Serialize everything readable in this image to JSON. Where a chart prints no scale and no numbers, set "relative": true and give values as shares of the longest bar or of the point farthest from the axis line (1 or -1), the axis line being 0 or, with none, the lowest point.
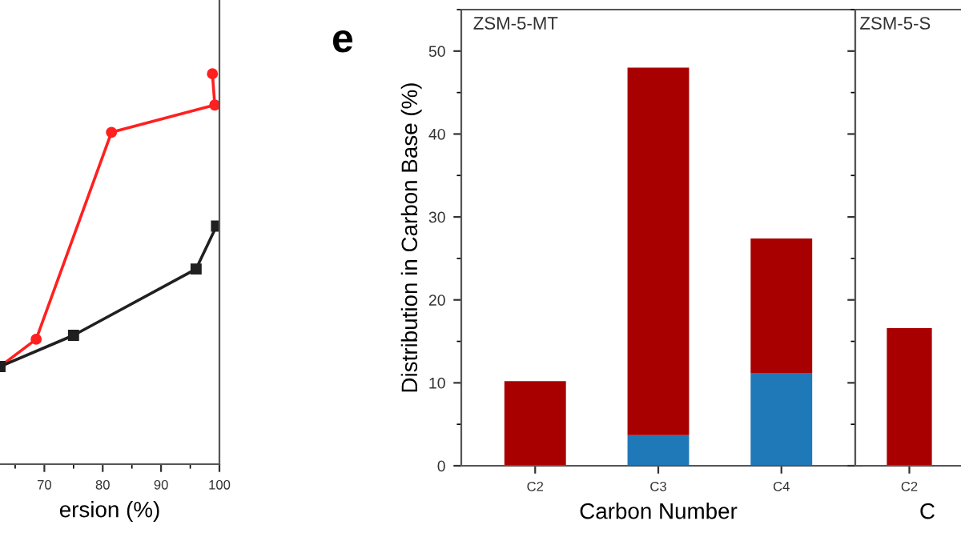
{
  "chart_data": [
    {
      "type": "line",
      "relative": true,
      "xlabel": "ersion (%)",
      "xlim": [
        62.4,
        100
      ],
      "xticks": [
        70,
        80,
        90,
        100
      ],
      "tick_labels": "x",
      "grid": false,
      "line_style": "solid",
      "series": [
        {
          "color": "#ff2020",
          "marker": "circle",
          "x": [
            62.4,
            68.6,
            81.5,
            99.2,
            98.8
          ],
          "values": [
            0.25,
            0.32,
            0.85,
            0.92,
            1.0
          ]
        },
        {
          "color": "#202020",
          "marker": "square",
          "x": [
            62.4,
            75,
            96,
            99.5
          ],
          "values": [
            0.25,
            0.33,
            0.5,
            0.61
          ]
        }
      ]
    },
    {
      "type": "bar",
      "stacked": true,
      "title": "ZSM-5-MT",
      "ylabel": "Distribution in Carbon Base (%)",
      "xlabel": "Carbon Number",
      "categories": [
        "C2",
        "C3",
        "C4"
      ],
      "ylim": [
        0,
        55
      ],
      "yticks": [
        0,
        10,
        20,
        30,
        40,
        50
      ],
      "grid": false,
      "annotations": [
        "e"
      ],
      "series": [
        {
          "color": "#1f78b8",
          "values": [
            0,
            3.7,
            11.2
          ]
        },
        {
          "color": "#a80000",
          "values": [
            10.2,
            44.3,
            16.2
          ]
        }
      ]
    },
    {
      "type": "bar",
      "title": "ZSM-5-S",
      "xlabel": "C",
      "categories": [
        "C2"
      ],
      "ylim": [
        0,
        55
      ],
      "yticks": [
        0,
        10,
        20,
        30,
        40,
        50
      ],
      "tick_labels": "x",
      "grid": false,
      "series": [
        {
          "color": "#a80000",
          "values": [
            16.6
          ]
        }
      ]
    }
  ]
}
